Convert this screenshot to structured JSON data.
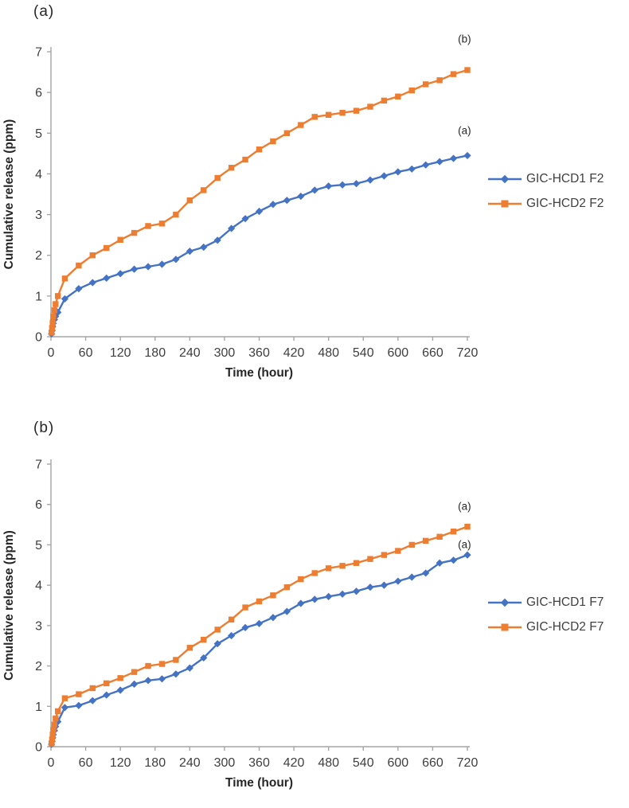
{
  "colors": {
    "series_blue": "#4472C4",
    "series_orange": "#ED7D31",
    "axis_line": "#A6A6A6",
    "tick_text": "#3F3F3F",
    "axis_title_text": "#262626"
  },
  "chart_data": [
    {
      "type": "line",
      "panel_label": "(a)",
      "xlabel": "Time (hour)",
      "ylabel": "Cumulative release (ppm)",
      "xlim": [
        0,
        720
      ],
      "ylim": [
        0,
        7
      ],
      "xticks": [
        0,
        60,
        120,
        180,
        240,
        300,
        360,
        420,
        480,
        540,
        600,
        660,
        720
      ],
      "yticks": [
        0,
        1,
        2,
        3,
        4,
        5,
        6,
        7
      ],
      "grid": false,
      "legend_position": "right",
      "x": [
        1,
        2,
        3,
        4,
        6,
        8,
        12,
        24,
        48,
        72,
        96,
        120,
        144,
        168,
        192,
        216,
        240,
        264,
        288,
        312,
        336,
        360,
        384,
        408,
        432,
        456,
        480,
        504,
        528,
        552,
        576,
        600,
        624,
        648,
        672,
        696,
        720
      ],
      "series": [
        {
          "name": "GIC-HCD1 F2",
          "color": "#4472C4",
          "marker": "diamond",
          "values": [
            0.07,
            0.15,
            0.25,
            0.33,
            0.42,
            0.5,
            0.6,
            0.93,
            1.18,
            1.33,
            1.44,
            1.55,
            1.66,
            1.72,
            1.78,
            1.9,
            2.1,
            2.2,
            2.37,
            2.66,
            2.9,
            3.08,
            3.25,
            3.35,
            3.45,
            3.6,
            3.7,
            3.73,
            3.76,
            3.85,
            3.95,
            4.05,
            4.12,
            4.22,
            4.3,
            4.38,
            4.45
          ]
        },
        {
          "name": "GIC-HCD2 F2",
          "color": "#ED7D31",
          "marker": "square",
          "values": [
            0.1,
            0.22,
            0.35,
            0.5,
            0.65,
            0.8,
            1.0,
            1.43,
            1.75,
            2.0,
            2.18,
            2.38,
            2.55,
            2.72,
            2.78,
            3.0,
            3.35,
            3.6,
            3.9,
            4.15,
            4.35,
            4.6,
            4.8,
            5.0,
            5.2,
            5.4,
            5.45,
            5.5,
            5.55,
            5.65,
            5.8,
            5.9,
            6.05,
            6.2,
            6.3,
            6.45,
            6.55
          ]
        }
      ],
      "annotations": [
        {
          "text": "(b)",
          "x": 715,
          "y": 7.3
        },
        {
          "text": "(a)",
          "x": 715,
          "y": 5.05
        }
      ]
    },
    {
      "type": "line",
      "panel_label": "(b)",
      "xlabel": "Time (hour)",
      "ylabel": "Cumulative release (ppm)",
      "xlim": [
        0,
        720
      ],
      "ylim": [
        0,
        7
      ],
      "xticks": [
        0,
        60,
        120,
        180,
        240,
        300,
        360,
        420,
        480,
        540,
        600,
        660,
        720
      ],
      "yticks": [
        0,
        1,
        2,
        3,
        4,
        5,
        6,
        7
      ],
      "grid": false,
      "legend_position": "right",
      "x": [
        1,
        2,
        3,
        4,
        6,
        8,
        12,
        24,
        48,
        72,
        96,
        120,
        144,
        168,
        192,
        216,
        240,
        264,
        288,
        312,
        336,
        360,
        384,
        408,
        432,
        456,
        480,
        504,
        528,
        552,
        576,
        600,
        624,
        648,
        672,
        696,
        720
      ],
      "series": [
        {
          "name": "GIC-HCD1 F7",
          "color": "#4472C4",
          "marker": "diamond",
          "values": [
            0.06,
            0.13,
            0.22,
            0.3,
            0.4,
            0.5,
            0.62,
            0.97,
            1.02,
            1.14,
            1.28,
            1.4,
            1.55,
            1.64,
            1.68,
            1.8,
            1.95,
            2.2,
            2.55,
            2.75,
            2.95,
            3.05,
            3.2,
            3.35,
            3.55,
            3.65,
            3.72,
            3.78,
            3.85,
            3.95,
            4.0,
            4.1,
            4.2,
            4.3,
            4.55,
            4.62,
            4.75
          ]
        },
        {
          "name": "GIC-HCD2 F7",
          "color": "#ED7D31",
          "marker": "square",
          "values": [
            0.08,
            0.18,
            0.3,
            0.42,
            0.55,
            0.7,
            0.88,
            1.2,
            1.3,
            1.45,
            1.57,
            1.7,
            1.85,
            2.0,
            2.05,
            2.15,
            2.45,
            2.65,
            2.9,
            3.15,
            3.45,
            3.6,
            3.75,
            3.95,
            4.15,
            4.3,
            4.42,
            4.48,
            4.55,
            4.65,
            4.75,
            4.85,
            5.0,
            5.1,
            5.2,
            5.33,
            5.45
          ]
        }
      ],
      "annotations": [
        {
          "text": "(a)",
          "x": 715,
          "y": 5.95
        },
        {
          "text": "(a)",
          "x": 715,
          "y": 5.0
        }
      ]
    }
  ]
}
